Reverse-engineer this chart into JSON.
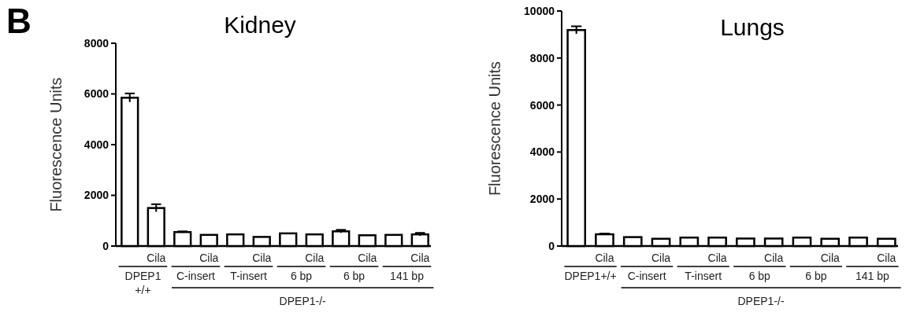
{
  "chart_data": [
    {
      "type": "bar",
      "title": "Kidney",
      "ylabel": "Fluorescence Units",
      "categories": [
        null,
        "Cila",
        null,
        "Cila",
        null,
        "Cila",
        null,
        "Cila",
        null,
        "Cila",
        null,
        "Cila"
      ],
      "series": [
        {
          "color": "#ffffff",
          "values": [
            5850,
            1500,
            550,
            440,
            460,
            360,
            500,
            460,
            580,
            425,
            440,
            460
          ],
          "errors": [
            170,
            150,
            30,
            null,
            null,
            null,
            null,
            null,
            60,
            null,
            null,
            60
          ]
        }
      ],
      "ylim": [
        0,
        8000
      ],
      "yticks": [
        0,
        2000,
        4000,
        6000,
        8000
      ],
      "annotations": [
        "DPEP1\n+/+",
        "C-insert",
        "T-insert",
        "6 bp",
        "6 bp",
        "141 bp",
        "DPEP1-/-",
        "B"
      ]
    },
    {
      "type": "bar",
      "title": "Lungs",
      "ylabel": "Fluorescence Units",
      "categories": [
        null,
        "Cila",
        null,
        "Cila",
        null,
        "Cila",
        null,
        "Cila",
        null,
        "Cila",
        null,
        "Cila"
      ],
      "series": [
        {
          "color": "#ffffff",
          "values": [
            9190,
            500,
            380,
            310,
            360,
            360,
            320,
            320,
            360,
            310,
            360,
            310
          ],
          "errors": [
            160,
            30,
            null,
            null,
            null,
            null,
            null,
            null,
            null,
            null,
            null,
            null
          ]
        }
      ],
      "ylim": [
        0,
        10000
      ],
      "yticks": [
        0,
        2000,
        4000,
        6000,
        8000,
        10000
      ],
      "annotations": [
        "DPEP1+/+",
        "C-insert",
        "T-insert",
        "6 bp",
        "6 bp",
        "141 bp",
        "DPEP1-/-"
      ]
    }
  ]
}
